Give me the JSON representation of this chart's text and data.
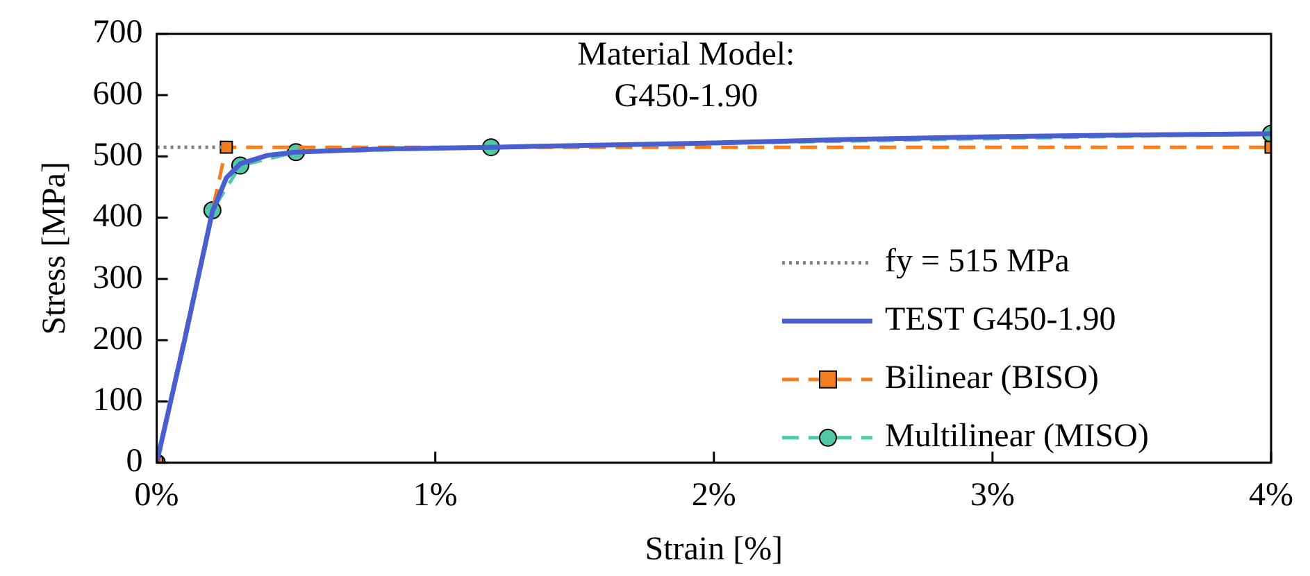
{
  "chart_data": {
    "type": "line",
    "title": "Material Model: G450-1.90",
    "xlabel": "Strain [%]",
    "ylabel": "Stress [MPa]",
    "xlim": [
      0,
      4
    ],
    "xticks": [
      {
        "value": 0,
        "label": "0%"
      },
      {
        "value": 1,
        "label": "1%"
      },
      {
        "value": 2,
        "label": "2%"
      },
      {
        "value": 3,
        "label": "3%"
      },
      {
        "value": 4,
        "label": "4%"
      }
    ],
    "ylim": [
      0,
      700
    ],
    "yticks": [
      0,
      100,
      200,
      300,
      400,
      500,
      600,
      700
    ],
    "grid": false,
    "legend": "bottom right",
    "series": [
      {
        "name": "fy = 515 MPa",
        "type": "line",
        "color": "#808080",
        "line_style": "dotted",
        "marker": "none",
        "x": [
          0,
          0.25
        ],
        "values": [
          515,
          515
        ]
      },
      {
        "name": "TEST G450-1.90",
        "type": "line",
        "color": "#4a5fcf",
        "line_style": "solid",
        "marker": "none",
        "x": [
          0,
          0.05,
          0.1,
          0.15,
          0.2,
          0.25,
          0.3,
          0.4,
          0.5,
          0.8,
          1.2,
          2,
          2.5,
          3,
          3.5,
          4
        ],
        "values": [
          0,
          100,
          200,
          305,
          410,
          465,
          488,
          502,
          507,
          512,
          515,
          522,
          528,
          532,
          535,
          537
        ]
      },
      {
        "name": "Bilinear (BISO)",
        "type": "line",
        "color": "#f47d20",
        "line_style": "dashed",
        "marker": "square",
        "x": [
          0,
          0.25,
          4
        ],
        "values": [
          0,
          515,
          515
        ]
      },
      {
        "name": "Multilinear (MISO)",
        "type": "line",
        "color": "#4fc9a5",
        "line_style": "dashed",
        "marker": "circle",
        "x": [
          0,
          0.2,
          0.3,
          0.5,
          1.2,
          4
        ],
        "values": [
          0,
          412,
          485,
          507,
          515,
          537
        ]
      }
    ]
  }
}
